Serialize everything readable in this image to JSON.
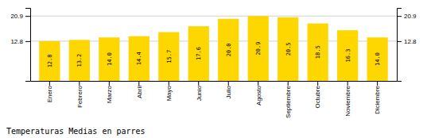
{
  "chart_data": {
    "type": "bar",
    "title": "Temperaturas Medias en parres",
    "categories": [
      "Enero",
      "Febrero",
      "Marzo",
      "Abril",
      "Mayo",
      "Junio",
      "Julio",
      "Agosto",
      "Septiembre",
      "Octubre",
      "Noviembre",
      "Diciembre"
    ],
    "values": [
      12.8,
      13.2,
      14.0,
      14.4,
      15.7,
      17.6,
      20.0,
      20.9,
      20.5,
      18.5,
      16.3,
      14.0
    ],
    "value_labels": [
      "12.8",
      "13.2",
      "14.0",
      "14.4",
      "15.7",
      "17.6",
      "20.0",
      "20.9",
      "20.5",
      "18.5",
      "16.3",
      "14.0"
    ],
    "data_labels": true,
    "color": "#FFD700",
    "ylim": [
      0,
      23.5
    ],
    "yticks": [
      12.8,
      20.9
    ],
    "y2lim": [
      0,
      23.5
    ],
    "y2ticks": [
      12.8,
      20.9
    ],
    "grid": true
  }
}
